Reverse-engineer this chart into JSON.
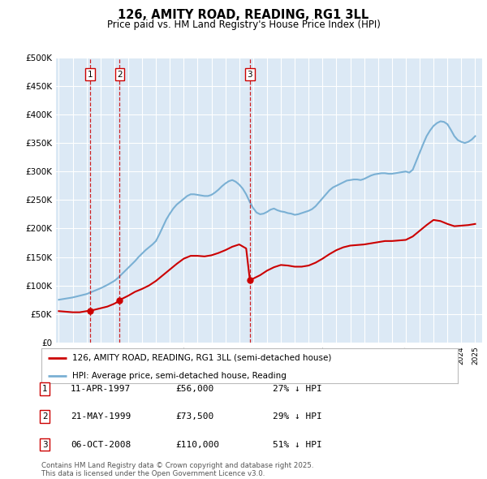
{
  "title": "126, AMITY ROAD, READING, RG1 3LL",
  "subtitle": "Price paid vs. HM Land Registry's House Price Index (HPI)",
  "ylim": [
    0,
    500000
  ],
  "yticks": [
    0,
    50000,
    100000,
    150000,
    200000,
    250000,
    300000,
    350000,
    400000,
    450000,
    500000
  ],
  "ytick_labels": [
    "£0",
    "£50K",
    "£100K",
    "£150K",
    "£200K",
    "£250K",
    "£300K",
    "£350K",
    "£400K",
    "£450K",
    "£500K"
  ],
  "xlim_start": 1994.8,
  "xlim_end": 2025.5,
  "bg_color": "#dce9f5",
  "line_color_red": "#cc0000",
  "line_color_blue": "#7ab0d4",
  "sale_dates_decimal": [
    1997.276,
    1999.386,
    2008.764
  ],
  "sale_prices": [
    56000,
    73500,
    110000
  ],
  "sale_labels": [
    "1",
    "2",
    "3"
  ],
  "legend_label_red": "126, AMITY ROAD, READING, RG1 3LL (semi-detached house)",
  "legend_label_blue": "HPI: Average price, semi-detached house, Reading",
  "table_data": [
    [
      "1",
      "11-APR-1997",
      "£56,000",
      "27% ↓ HPI"
    ],
    [
      "2",
      "21-MAY-1999",
      "£73,500",
      "29% ↓ HPI"
    ],
    [
      "3",
      "06-OCT-2008",
      "£110,000",
      "51% ↓ HPI"
    ]
  ],
  "copyright_text": "Contains HM Land Registry data © Crown copyright and database right 2025.\nThis data is licensed under the Open Government Licence v3.0.",
  "hpi_years": [
    1995.0,
    1995.25,
    1995.5,
    1995.75,
    1996.0,
    1996.25,
    1996.5,
    1996.75,
    1997.0,
    1997.25,
    1997.5,
    1997.75,
    1998.0,
    1998.25,
    1998.5,
    1998.75,
    1999.0,
    1999.25,
    1999.5,
    1999.75,
    2000.0,
    2000.25,
    2000.5,
    2000.75,
    2001.0,
    2001.25,
    2001.5,
    2001.75,
    2002.0,
    2002.25,
    2002.5,
    2002.75,
    2003.0,
    2003.25,
    2003.5,
    2003.75,
    2004.0,
    2004.25,
    2004.5,
    2004.75,
    2005.0,
    2005.25,
    2005.5,
    2005.75,
    2006.0,
    2006.25,
    2006.5,
    2006.75,
    2007.0,
    2007.25,
    2007.5,
    2007.75,
    2008.0,
    2008.25,
    2008.5,
    2008.75,
    2009.0,
    2009.25,
    2009.5,
    2009.75,
    2010.0,
    2010.25,
    2010.5,
    2010.75,
    2011.0,
    2011.25,
    2011.5,
    2011.75,
    2012.0,
    2012.25,
    2012.5,
    2012.75,
    2013.0,
    2013.25,
    2013.5,
    2013.75,
    2014.0,
    2014.25,
    2014.5,
    2014.75,
    2015.0,
    2015.25,
    2015.5,
    2015.75,
    2016.0,
    2016.25,
    2016.5,
    2016.75,
    2017.0,
    2017.25,
    2017.5,
    2017.75,
    2018.0,
    2018.25,
    2018.5,
    2018.75,
    2019.0,
    2019.25,
    2019.5,
    2019.75,
    2020.0,
    2020.25,
    2020.5,
    2020.75,
    2021.0,
    2021.25,
    2021.5,
    2021.75,
    2022.0,
    2022.25,
    2022.5,
    2022.75,
    2023.0,
    2023.25,
    2023.5,
    2023.75,
    2024.0,
    2024.25,
    2024.5,
    2024.75,
    2025.0
  ],
  "hpi_values": [
    75000,
    76000,
    77000,
    78000,
    79000,
    80500,
    82000,
    83500,
    85000,
    87500,
    90000,
    92500,
    95000,
    98000,
    101000,
    104500,
    108000,
    113000,
    119000,
    125000,
    131000,
    137000,
    143000,
    150000,
    156000,
    162000,
    167000,
    172000,
    178000,
    190000,
    203000,
    216000,
    226000,
    235000,
    242000,
    247000,
    252000,
    257000,
    260000,
    260000,
    259000,
    258000,
    257000,
    257000,
    259000,
    263000,
    268000,
    274000,
    279000,
    283000,
    285000,
    282000,
    277000,
    270000,
    260000,
    247000,
    236000,
    228000,
    225000,
    226000,
    229000,
    233000,
    235000,
    232000,
    230000,
    229000,
    227000,
    226000,
    224000,
    225000,
    227000,
    229000,
    231000,
    234000,
    239000,
    246000,
    253000,
    260000,
    267000,
    272000,
    275000,
    278000,
    281000,
    284000,
    285000,
    286000,
    286000,
    285000,
    287000,
    290000,
    293000,
    295000,
    296000,
    297000,
    297000,
    296000,
    296000,
    297000,
    298000,
    299000,
    300000,
    298000,
    303000,
    318000,
    333000,
    348000,
    362000,
    372000,
    380000,
    385000,
    388000,
    387000,
    383000,
    373000,
    362000,
    355000,
    352000,
    350000,
    352000,
    356000,
    362000
  ],
  "red_years": [
    1995.0,
    1995.5,
    1996.0,
    1996.5,
    1997.0,
    1997.276,
    1997.5,
    1998.0,
    1998.5,
    1999.0,
    1999.386,
    1999.5,
    2000.0,
    2000.5,
    2001.0,
    2001.5,
    2002.0,
    2002.5,
    2003.0,
    2003.5,
    2004.0,
    2004.5,
    2005.0,
    2005.5,
    2006.0,
    2006.5,
    2007.0,
    2007.5,
    2008.0,
    2008.5,
    2008.764,
    2009.0,
    2009.5,
    2010.0,
    2010.5,
    2011.0,
    2011.5,
    2012.0,
    2012.5,
    2013.0,
    2013.5,
    2014.0,
    2014.5,
    2015.0,
    2015.5,
    2016.0,
    2016.5,
    2017.0,
    2017.5,
    2018.0,
    2018.5,
    2019.0,
    2019.5,
    2020.0,
    2020.5,
    2021.0,
    2021.5,
    2022.0,
    2022.5,
    2023.0,
    2023.5,
    2024.0,
    2024.5,
    2025.0
  ],
  "red_values": [
    55000,
    54000,
    53000,
    53000,
    55000,
    56000,
    57000,
    60000,
    63000,
    68000,
    73500,
    76000,
    82000,
    89000,
    94000,
    100000,
    108000,
    118000,
    128000,
    138000,
    147000,
    152000,
    152000,
    151000,
    153000,
    157000,
    162000,
    168000,
    172000,
    165000,
    110000,
    112000,
    118000,
    126000,
    132000,
    136000,
    135000,
    133000,
    133000,
    135000,
    140000,
    147000,
    155000,
    162000,
    167000,
    170000,
    171000,
    172000,
    174000,
    176000,
    178000,
    178000,
    179000,
    180000,
    186000,
    196000,
    206000,
    215000,
    213000,
    208000,
    204000,
    205000,
    206000,
    208000
  ]
}
